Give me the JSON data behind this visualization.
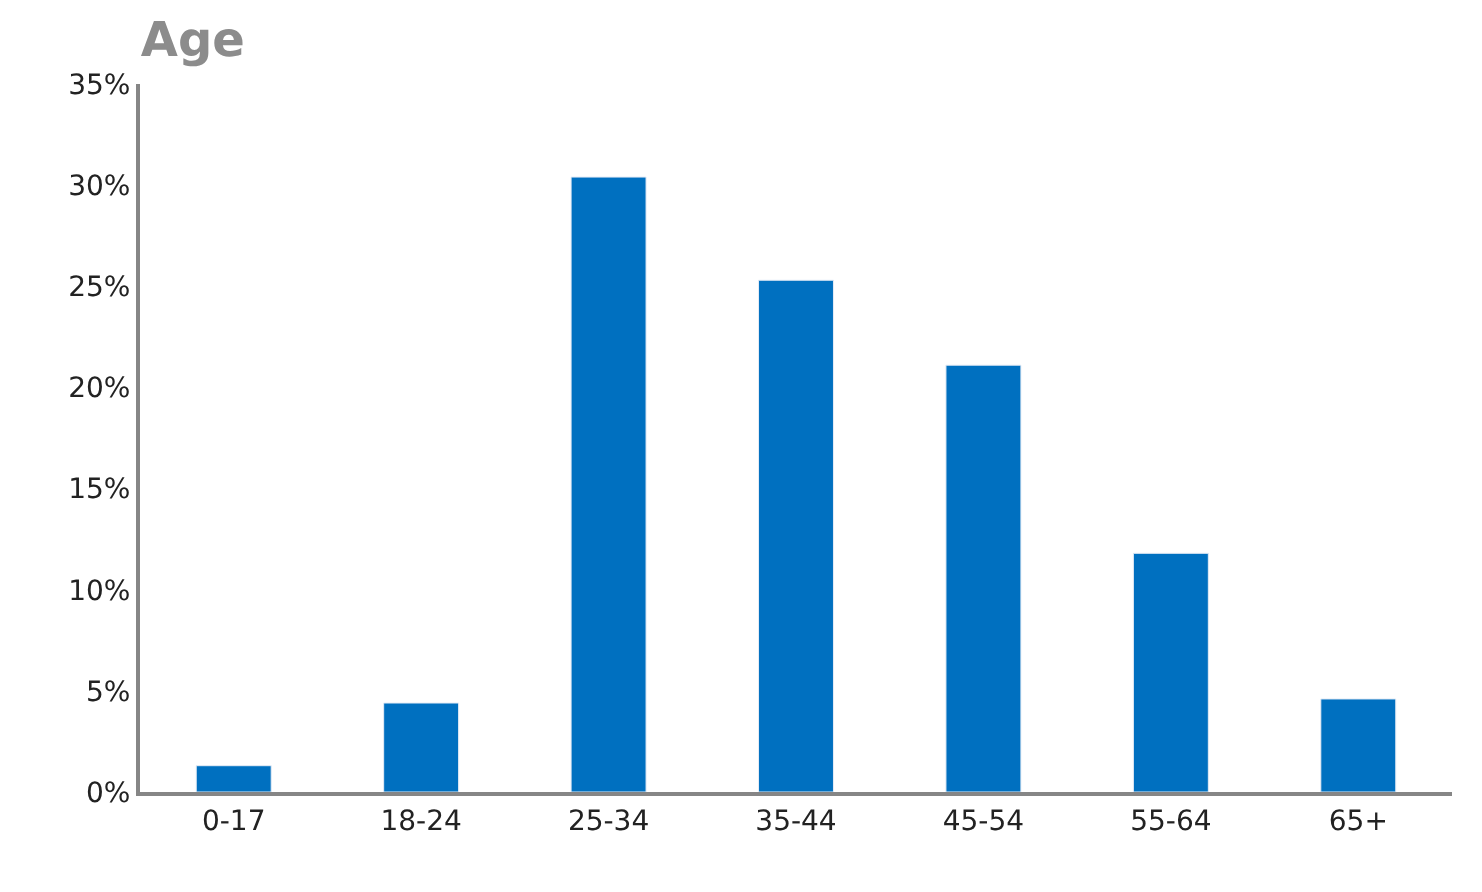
{
  "chart_data": {
    "type": "bar",
    "title": "Age",
    "categories": [
      "0-17",
      "18-24",
      "25-34",
      "35-44",
      "45-54",
      "55-64",
      "65+"
    ],
    "values": [
      1.3,
      4.4,
      30.4,
      25.3,
      21.1,
      11.8,
      4.6
    ],
    "color": "#0070c0",
    "ylim": [
      0,
      35
    ],
    "yticks": [
      {
        "value": 0,
        "label": "0%"
      },
      {
        "value": 5,
        "label": "5%"
      },
      {
        "value": 10,
        "label": "10%"
      },
      {
        "value": 15,
        "label": "15%"
      },
      {
        "value": 20,
        "label": "20%"
      },
      {
        "value": 25,
        "label": "25%"
      },
      {
        "value": 30,
        "label": "30%"
      },
      {
        "value": 35,
        "label": "35%"
      }
    ]
  }
}
